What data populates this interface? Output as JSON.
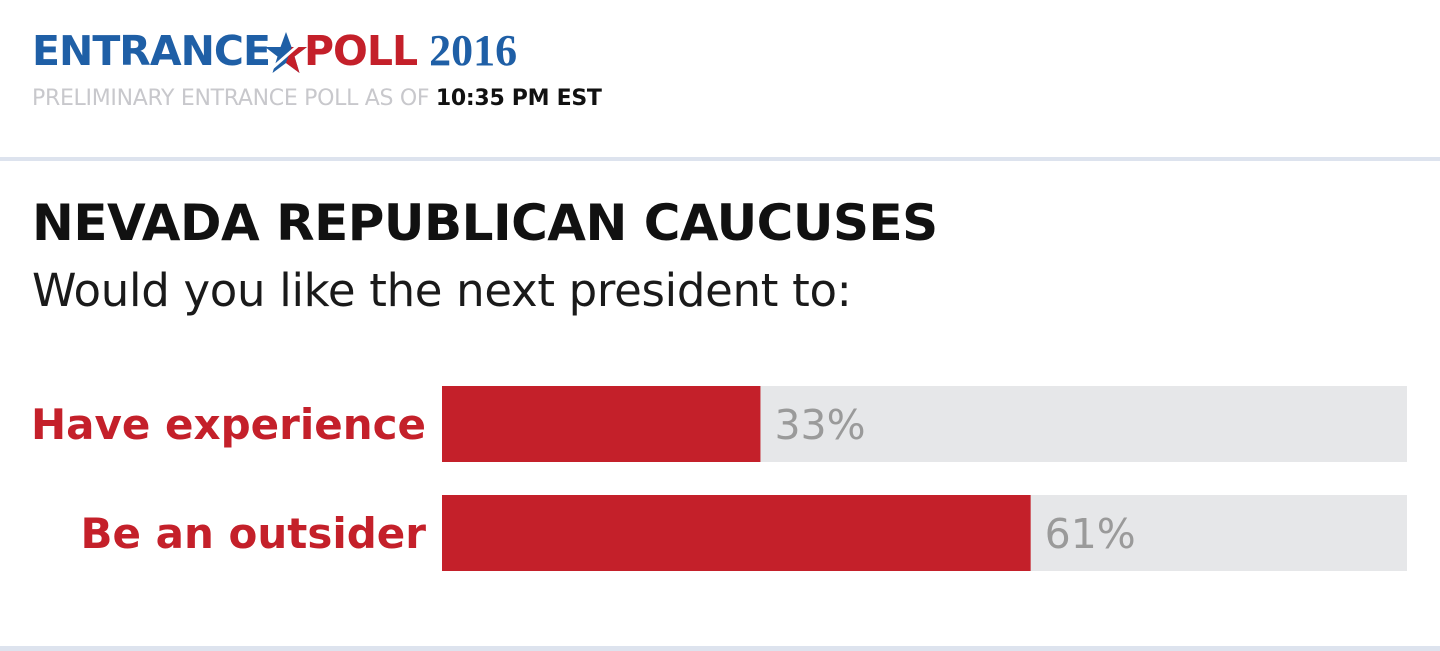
{
  "header": {
    "brand_left": "ENTRANCE",
    "brand_right": "POLL",
    "brand_year": "2016",
    "subline_prefix": "PRELIMINARY ENTRANCE POLL AS OF",
    "subline_time": "10:35 PM EST",
    "icons": [
      "star-icon"
    ]
  },
  "colors": {
    "brand_blue": "#1f5fa6",
    "brand_red": "#c4202a",
    "bar_fill": "#c4202a",
    "bar_track": "#e6e7e9",
    "label_red": "#c4202a",
    "value_gray": "#9a9a9a"
  },
  "chart_data": {
    "type": "bar",
    "orientation": "horizontal",
    "title": "NEVADA REPUBLICAN CAUCUSES",
    "subtitle": "Would you like the next president to:",
    "categories": [
      "Have experience",
      "Be an outsider"
    ],
    "values": [
      33,
      61
    ],
    "value_labels": [
      "33%",
      "61%"
    ],
    "xlim": [
      0,
      100
    ],
    "unit": "%",
    "grid": false,
    "legend": "none"
  }
}
